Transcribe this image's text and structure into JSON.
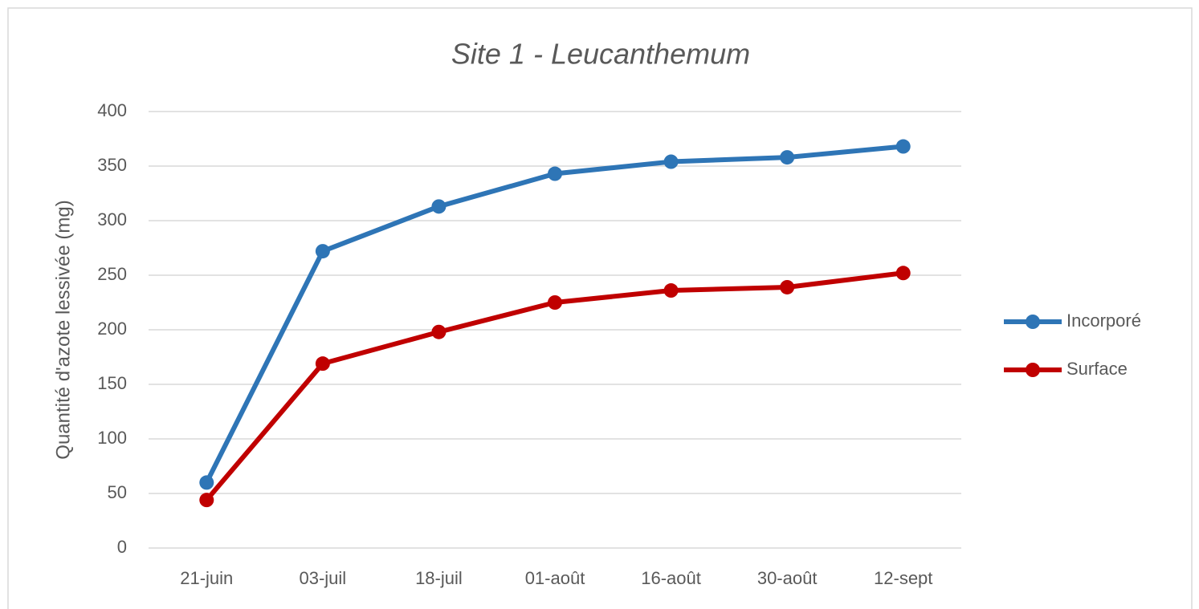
{
  "chart_data": {
    "type": "line",
    "title": "Site 1 - Leucanthemum",
    "y_label": "Quantité d'azote lessivée (mg)",
    "categories": [
      "21-juin",
      "03-juil",
      "18-juil",
      "01-août",
      "16-août",
      "30-août",
      "12-sept"
    ],
    "series": [
      {
        "name": "Incorporé",
        "color": "#2e75b6",
        "values": [
          60,
          272,
          313,
          343,
          354,
          358,
          368
        ]
      },
      {
        "name": "Surface",
        "color": "#c00000",
        "values": [
          44,
          169,
          198,
          225,
          236,
          239,
          252
        ]
      }
    ],
    "ylim": [
      0,
      400
    ],
    "yticks": [
      0,
      50,
      100,
      150,
      200,
      250,
      300,
      350,
      400
    ],
    "grid": true,
    "legend": "right"
  }
}
